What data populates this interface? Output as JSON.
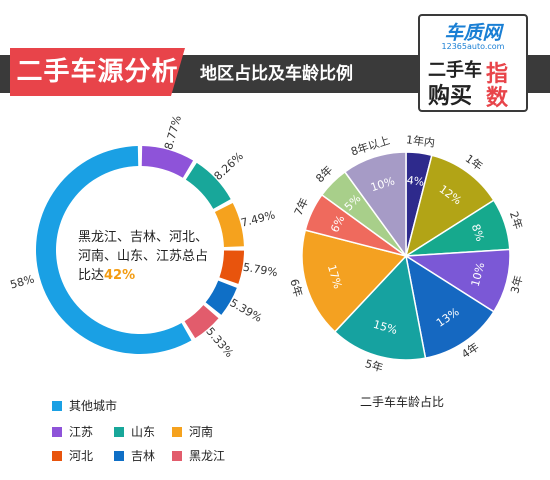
{
  "header": {
    "title": "二手车源分析",
    "subtitle": "地区占比及车龄比例"
  },
  "logo": {
    "site_name": "车质网",
    "url": "12365auto.com",
    "line1": "二手车",
    "line2": "购买",
    "index_char1": "指",
    "index_char2": "数"
  },
  "donut": {
    "center_text_prefix": "黑龙江、吉林、河北、河南、山东、江苏总占比达",
    "center_text_pct": "42%"
  },
  "pie": {
    "title": "二手车车龄占比"
  },
  "chart_data": [
    {
      "type": "pie",
      "variant": "donut",
      "title": "地区占比",
      "slices": [
        {
          "name": "其他城市",
          "value": 58,
          "label": "58%",
          "color": "#1aa0e4"
        },
        {
          "name": "江苏",
          "value": 8.77,
          "label": "8.77%",
          "color": "#8e53d9"
        },
        {
          "name": "山东",
          "value": 8.26,
          "label": "8.26%",
          "color": "#18a79a"
        },
        {
          "name": "河南",
          "value": 7.49,
          "label": "7.49%",
          "color": "#f5a21e"
        },
        {
          "name": "河北",
          "value": 5.79,
          "label": "5.79%",
          "color": "#e8540d"
        },
        {
          "name": "吉林",
          "value": 5.39,
          "label": "5.39%",
          "color": "#0f6fc6"
        },
        {
          "name": "黑龙江",
          "value": 5.33,
          "label": "5.33%",
          "color": "#e25c6c"
        }
      ],
      "legend": [
        "其他城市",
        "江苏",
        "山东",
        "河南",
        "河北",
        "吉林",
        "黑龙江"
      ]
    },
    {
      "type": "pie",
      "title": "二手车车龄占比",
      "slices": [
        {
          "name": "1年内",
          "value": 4,
          "label": "4%",
          "color": "#2e2a8c"
        },
        {
          "name": "1年",
          "value": 12,
          "label": "12%",
          "color": "#b2a416"
        },
        {
          "name": "2年",
          "value": 8,
          "label": "8%",
          "color": "#16a98d"
        },
        {
          "name": "3年",
          "value": 10,
          "label": "10%",
          "color": "#7b58d6"
        },
        {
          "name": "4年",
          "value": 13,
          "label": "13%",
          "color": "#1568c1"
        },
        {
          "name": "5年",
          "value": 15,
          "label": "15%",
          "color": "#16a2a0"
        },
        {
          "name": "6年",
          "value": 17,
          "label": "17%",
          "color": "#f4a121"
        },
        {
          "name": "7年",
          "value": 6,
          "label": "6%",
          "color": "#ef6a5d"
        },
        {
          "name": "8年",
          "value": 5,
          "label": "5%",
          "color": "#a8cf8a"
        },
        {
          "name": "8年以上",
          "value": 10,
          "label": "10%",
          "color": "#a69bc6"
        }
      ]
    }
  ]
}
